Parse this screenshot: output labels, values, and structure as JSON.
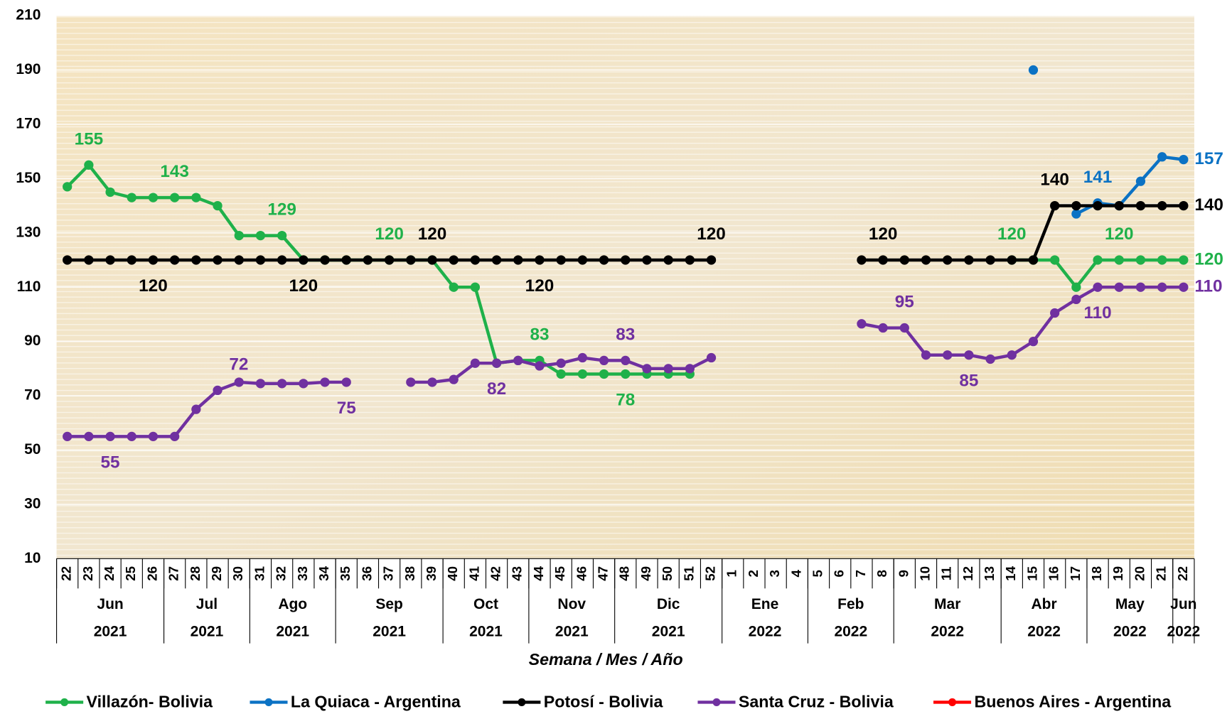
{
  "chart_data": {
    "type": "line",
    "x_title": "Semana / Mes / Año",
    "categories": [
      "22",
      "23",
      "24",
      "25",
      "26",
      "27",
      "28",
      "29",
      "30",
      "31",
      "32",
      "33",
      "34",
      "35",
      "36",
      "37",
      "38",
      "39",
      "40",
      "41",
      "42",
      "43",
      "44",
      "45",
      "46",
      "47",
      "48",
      "49",
      "50",
      "51",
      "52",
      "1",
      "2",
      "3",
      "4",
      "5",
      "6",
      "7",
      "8",
      "9",
      "10",
      "11",
      "12",
      "13",
      "14",
      "15",
      "16",
      "17",
      "18",
      "19",
      "20",
      "21",
      "22"
    ],
    "months": [
      "Jun",
      null,
      null,
      null,
      null,
      "Jul",
      null,
      null,
      null,
      "Ago",
      null,
      null,
      null,
      "Sep",
      null,
      null,
      null,
      null,
      "Oct",
      null,
      null,
      null,
      "Nov",
      null,
      null,
      null,
      "Dic",
      null,
      null,
      null,
      null,
      "Ene",
      null,
      null,
      null,
      "Feb",
      null,
      null,
      null,
      "Mar",
      null,
      null,
      null,
      null,
      "Abr",
      null,
      null,
      null,
      "May",
      null,
      null,
      null,
      "Jun"
    ],
    "years": [
      "2021",
      null,
      null,
      null,
      null,
      "2021",
      null,
      null,
      null,
      "2021",
      null,
      null,
      null,
      "2021",
      null,
      null,
      null,
      null,
      "2021",
      null,
      null,
      null,
      "2021",
      null,
      null,
      null,
      "2021",
      null,
      null,
      null,
      null,
      "2022",
      null,
      null,
      null,
      "2022",
      null,
      null,
      null,
      "2022",
      null,
      null,
      null,
      null,
      "2022",
      null,
      null,
      null,
      "2022",
      null,
      null,
      null,
      "2022"
    ],
    "ylim": [
      10,
      210
    ],
    "yticks": [
      10,
      30,
      50,
      70,
      90,
      110,
      130,
      150,
      170,
      190,
      210
    ],
    "grid": true,
    "series": [
      {
        "name": "Villazón- Bolivia",
        "color": "#1fb14a",
        "values": [
          147,
          155,
          145,
          143,
          143,
          143,
          143,
          140,
          129,
          129,
          129,
          120,
          120,
          120,
          120,
          120,
          120,
          120,
          110,
          110,
          82,
          83,
          83,
          78,
          78,
          78,
          78,
          78,
          78,
          78,
          null,
          null,
          null,
          null,
          null,
          null,
          null,
          null,
          null,
          null,
          null,
          null,
          null,
          null,
          120,
          120,
          120,
          110,
          120,
          120,
          120,
          120,
          120
        ],
        "value_labels": [
          null,
          "155",
          null,
          null,
          null,
          "143",
          null,
          null,
          null,
          null,
          "129",
          null,
          null,
          null,
          null,
          "120",
          null,
          null,
          null,
          null,
          null,
          null,
          "83",
          null,
          null,
          null,
          "78",
          null,
          null,
          null,
          null,
          null,
          null,
          null,
          null,
          null,
          null,
          null,
          null,
          null,
          null,
          null,
          null,
          null,
          "120",
          null,
          null,
          null,
          null,
          "120",
          null,
          null,
          "120"
        ]
      },
      {
        "name": "La Quiaca - Argentina",
        "color": "#0b72c4",
        "values": [
          null,
          null,
          null,
          null,
          null,
          null,
          null,
          null,
          null,
          null,
          null,
          null,
          null,
          null,
          null,
          null,
          null,
          null,
          null,
          null,
          null,
          null,
          null,
          null,
          null,
          null,
          null,
          null,
          null,
          null,
          null,
          null,
          null,
          null,
          null,
          null,
          null,
          null,
          null,
          null,
          null,
          null,
          null,
          null,
          null,
          190,
          null,
          137,
          141,
          140,
          149,
          158,
          157
        ],
        "value_labels": [
          null,
          null,
          null,
          null,
          null,
          null,
          null,
          null,
          null,
          null,
          null,
          null,
          null,
          null,
          null,
          null,
          null,
          null,
          null,
          null,
          null,
          null,
          null,
          null,
          null,
          null,
          null,
          null,
          null,
          null,
          null,
          null,
          null,
          null,
          null,
          null,
          null,
          null,
          null,
          null,
          null,
          null,
          null,
          null,
          null,
          null,
          null,
          null,
          "141",
          null,
          null,
          null,
          "157"
        ]
      },
      {
        "name": "Potosí - Bolivia",
        "color": "#000000",
        "values": [
          120,
          120,
          120,
          120,
          120,
          120,
          120,
          120,
          120,
          120,
          120,
          120,
          120,
          120,
          120,
          120,
          120,
          120,
          120,
          120,
          120,
          120,
          120,
          120,
          120,
          120,
          120,
          120,
          120,
          120,
          120,
          null,
          null,
          null,
          null,
          null,
          null,
          120,
          120,
          120,
          120,
          120,
          120,
          120,
          120,
          120,
          140,
          140,
          140,
          140,
          140,
          140,
          140
        ],
        "value_labels": [
          null,
          null,
          null,
          null,
          "120",
          null,
          null,
          null,
          null,
          null,
          null,
          "120",
          null,
          null,
          null,
          null,
          null,
          "120",
          null,
          null,
          null,
          null,
          "120",
          null,
          null,
          null,
          null,
          null,
          null,
          null,
          "120",
          null,
          null,
          null,
          null,
          null,
          null,
          null,
          "120",
          null,
          null,
          null,
          null,
          null,
          null,
          null,
          "140",
          null,
          null,
          null,
          null,
          null,
          "140"
        ]
      },
      {
        "name": "Santa Cruz - Bolivia",
        "color": "#7030a0",
        "values": [
          55,
          55,
          55,
          55,
          55,
          55,
          65,
          72,
          75,
          74.5,
          74.5,
          74.5,
          75,
          75,
          null,
          null,
          75,
          75,
          76,
          82,
          82,
          83,
          81,
          82,
          84,
          83,
          83,
          80,
          80,
          80,
          84,
          null,
          null,
          null,
          null,
          null,
          null,
          96.5,
          95,
          95,
          85,
          85,
          85,
          83.5,
          85,
          90,
          100.5,
          105.5,
          110,
          110,
          110,
          110,
          110
        ],
        "value_labels": [
          null,
          null,
          "55",
          null,
          null,
          null,
          null,
          "72",
          null,
          null,
          null,
          null,
          null,
          "75",
          null,
          null,
          null,
          null,
          null,
          null,
          "82",
          null,
          null,
          null,
          null,
          null,
          "83",
          null,
          null,
          null,
          null,
          null,
          null,
          null,
          null,
          null,
          null,
          null,
          null,
          "95",
          null,
          null,
          "85",
          null,
          null,
          null,
          null,
          null,
          "110",
          null,
          null,
          null,
          "110"
        ]
      },
      {
        "name": "Buenos Aires - Argentina",
        "color": "#ff0000",
        "values": [
          null,
          null,
          null,
          null,
          null,
          null,
          null,
          null,
          null,
          null,
          null,
          null,
          null,
          null,
          null,
          null,
          null,
          null,
          null,
          null,
          null,
          null,
          null,
          null,
          null,
          null,
          null,
          null,
          null,
          null,
          null,
          null,
          null,
          null,
          null,
          null,
          null,
          null,
          null,
          null,
          null,
          null,
          null,
          null,
          null,
          null,
          null,
          null,
          null,
          null,
          null,
          null,
          null
        ]
      }
    ]
  }
}
